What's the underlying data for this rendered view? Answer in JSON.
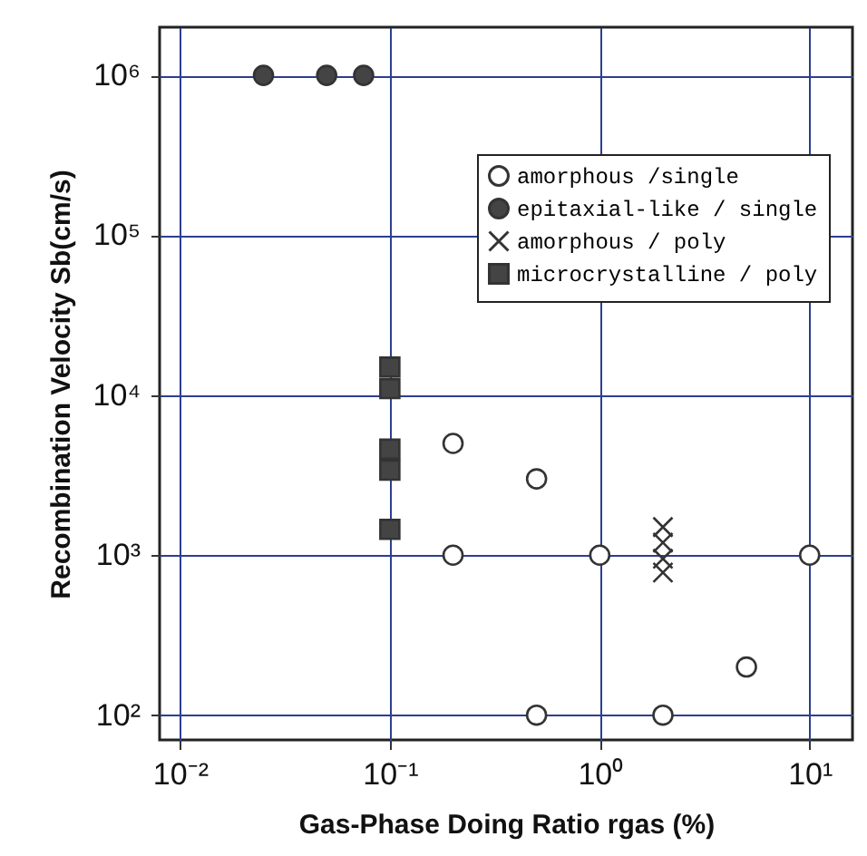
{
  "chart_data": {
    "type": "scatter",
    "xlabel": "Gas-Phase Doing Ratio  rgas (%)",
    "ylabel": "Recombination Velocity  Sb(cm/s)",
    "log": "xy",
    "grid": true,
    "legend": "top right",
    "xlim": [
      0.008,
      16
    ],
    "ylim": [
      70,
      2000000
    ],
    "xticks": [
      {
        "value": 0.01,
        "label": "10⁻²"
      },
      {
        "value": 0.1,
        "label": "10⁻¹"
      },
      {
        "value": 1,
        "label": "10⁰"
      },
      {
        "value": 10,
        "label": "10¹"
      }
    ],
    "yticks": [
      {
        "value": 100,
        "label": "10²"
      },
      {
        "value": 1000,
        "label": "10³"
      },
      {
        "value": 10000,
        "label": "10⁴"
      },
      {
        "value": 100000,
        "label": "10⁵"
      },
      {
        "value": 1000000,
        "label": "10⁶"
      }
    ],
    "series": [
      {
        "name": "amorphous /single",
        "color": "#ffffff",
        "marker": "circle",
        "x": [
          0.2,
          0.5,
          0.2,
          1,
          10,
          5,
          0.5,
          2
        ],
        "values": [
          5000,
          3000,
          1000,
          1000,
          1000,
          200,
          100,
          100
        ]
      },
      {
        "name": "epitaxial-like / single",
        "color": "#444444",
        "marker": "circle",
        "x": [
          0.025,
          0.05,
          0.075
        ],
        "values": [
          1000000,
          1000000,
          1000000
        ]
      },
      {
        "name": "amorphous / poly",
        "color": "#333333",
        "marker": "cross",
        "x": [
          2,
          2,
          2,
          2
        ],
        "values": [
          1500,
          1200,
          950,
          780
        ]
      },
      {
        "name": "microcrystalline / poly",
        "color": "#444444",
        "marker": "square",
        "x": [
          0.1,
          0.1,
          0.1,
          0.1,
          0.1
        ],
        "values": [
          15000,
          11000,
          4600,
          3400,
          1450
        ]
      }
    ]
  }
}
